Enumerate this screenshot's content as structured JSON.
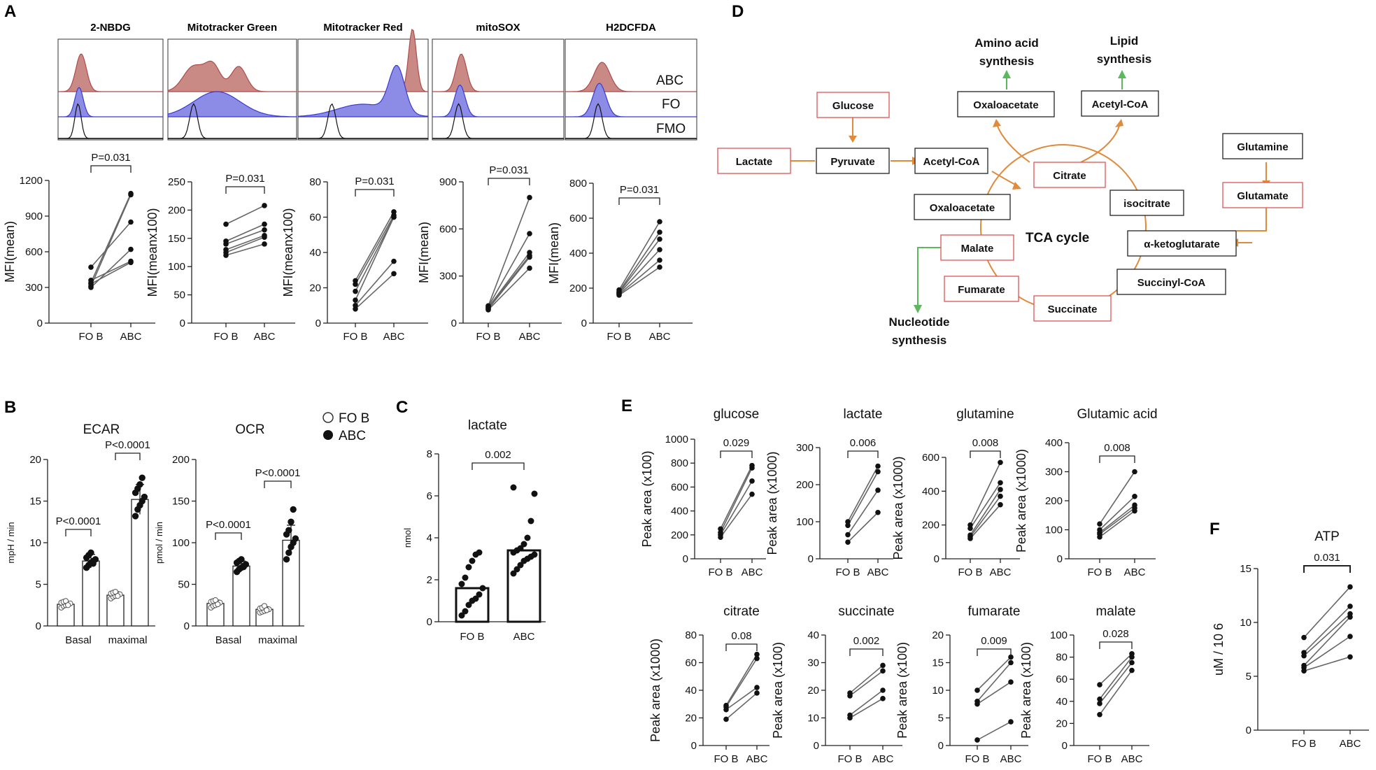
{
  "panel_labels": [
    "A",
    "B",
    "C",
    "D",
    "E",
    "F"
  ],
  "legend_b": {
    "fo": "FO B",
    "abc": "ABC"
  },
  "histograms": {
    "titles": [
      "2-NBDG",
      "Mitotracker Green",
      "Mitotracker Red",
      "mitoSOX",
      "H2DCFDA"
    ],
    "row_labels": [
      "ABC",
      "FO",
      "FMO"
    ],
    "colors": {
      "abc": "#b04a4a",
      "abc_fill": "#c98a86",
      "fo": "#3a3ad0",
      "fo_fill": "#8c8ce6",
      "fmo": "#111111",
      "abc_line": "#e08a8a",
      "fo_line": "#8888e8"
    }
  },
  "pathway": {
    "nodes": [
      "Glucose",
      "Lactate",
      "Pyruvate",
      "Acetyl-CoA",
      "Citrate",
      "Oxaloacetate",
      "isocitrate",
      "Malate",
      "α-ketoglutarate",
      "Fumarate",
      "Succinyl-CoA",
      "Succinate",
      "Glutamine",
      "Glutamate",
      "Oxaloacetate",
      "Acetyl-CoA"
    ],
    "labels": {
      "amino": "Amino acid synthesis",
      "amino_l1": "Amino acid",
      "amino_l2": "synthesis",
      "lipid_l1": "Lipid",
      "lipid_l2": "synthesis",
      "nucl_l1": "Nucleotide",
      "nucl_l2": "synthesis",
      "tca": "TCA cycle"
    },
    "colors": {
      "red": "#e05555",
      "black": "#222222",
      "arrow": "#e08a3c",
      "green": "#5cb85c"
    }
  },
  "chart_data": [
    {
      "id": "A1",
      "type": "scatter",
      "title": "",
      "ylabel": "MFI(mean)",
      "categories": [
        "FO B",
        "ABC"
      ],
      "ylim": [
        0,
        1200
      ],
      "yticks": [
        0,
        300,
        600,
        900,
        1200
      ],
      "pvalue": "P=0.031",
      "pairs": [
        [
          340,
          1090
        ],
        [
          310,
          1080
        ],
        [
          470,
          850
        ],
        [
          300,
          620
        ],
        [
          360,
          520
        ],
        [
          330,
          510
        ]
      ]
    },
    {
      "id": "A2",
      "type": "scatter",
      "title": "",
      "ylabel": "MFI(meanx100)",
      "categories": [
        "FO B",
        "ABC"
      ],
      "ylim": [
        0,
        250
      ],
      "yticks": [
        0,
        50,
        100,
        150,
        200,
        250
      ],
      "pvalue": "P=0.031",
      "pairs": [
        [
          175,
          208
        ],
        [
          145,
          175
        ],
        [
          140,
          165
        ],
        [
          130,
          155
        ],
        [
          125,
          152
        ],
        [
          120,
          140
        ]
      ]
    },
    {
      "id": "A3",
      "type": "scatter",
      "title": "",
      "ylabel": "MFI(meanx100)",
      "categories": [
        "FO B",
        "ABC"
      ],
      "ylim": [
        0,
        80
      ],
      "yticks": [
        0,
        20,
        40,
        60,
        80
      ],
      "pvalue": "P=0.031",
      "pairs": [
        [
          24,
          63
        ],
        [
          22,
          61
        ],
        [
          18,
          60
        ],
        [
          13,
          60
        ],
        [
          10,
          35
        ],
        [
          8,
          28
        ]
      ]
    },
    {
      "id": "A4",
      "type": "scatter",
      "title": "",
      "ylabel": "MFI(mean)",
      "categories": [
        "FO B",
        "ABC"
      ],
      "ylim": [
        0,
        900
      ],
      "yticks": [
        0,
        300,
        600,
        900
      ],
      "pvalue": "P=0.031",
      "pairs": [
        [
          110,
          800
        ],
        [
          105,
          570
        ],
        [
          100,
          450
        ],
        [
          95,
          430
        ],
        [
          90,
          420
        ],
        [
          85,
          350
        ]
      ]
    },
    {
      "id": "A5",
      "type": "scatter",
      "title": "",
      "ylabel": "MFI(mean)",
      "categories": [
        "FO B",
        "ABC"
      ],
      "ylim": [
        0,
        800
      ],
      "yticks": [
        0,
        200,
        400,
        600,
        800
      ],
      "pvalue": "P=0.031",
      "pairs": [
        [
          190,
          580
        ],
        [
          180,
          520
        ],
        [
          175,
          480
        ],
        [
          170,
          420
        ],
        [
          165,
          360
        ],
        [
          160,
          320
        ]
      ]
    },
    {
      "id": "B1",
      "type": "bar",
      "title": "ECAR",
      "ylabel": "mpH / min",
      "categories": [
        "Basal",
        "maximal"
      ],
      "ylim": [
        0,
        20
      ],
      "yticks": [
        0,
        5,
        10,
        15,
        20
      ],
      "series": [
        {
          "name": "FO B",
          "group": "Basal",
          "mean": 2.6,
          "sd": 0.3,
          "points": [
            2.2,
            2.4,
            2.5,
            2.6,
            2.7,
            2.8,
            2.9,
            3.0,
            2.5
          ]
        },
        {
          "name": "ABC",
          "group": "Basal",
          "mean": 7.8,
          "sd": 0.8,
          "points": [
            7.0,
            7.3,
            7.6,
            7.8,
            8.0,
            8.2,
            8.5,
            8.8,
            7.5
          ]
        },
        {
          "name": "FO B",
          "group": "maximal",
          "mean": 3.7,
          "sd": 0.4,
          "points": [
            3.3,
            3.5,
            3.6,
            3.7,
            3.8,
            3.9,
            4.0,
            4.1,
            3.6
          ]
        },
        {
          "name": "ABC",
          "group": "maximal",
          "mean": 15.2,
          "sd": 1.8,
          "points": [
            13.2,
            14.0,
            14.5,
            15.0,
            15.5,
            16.0,
            16.5,
            17.0,
            17.8
          ]
        }
      ],
      "pvalues": [
        {
          "group": "Basal",
          "text": "P<0.0001"
        },
        {
          "group": "maximal",
          "text": "P<0.0001"
        }
      ]
    },
    {
      "id": "B2",
      "type": "bar",
      "title": "OCR",
      "ylabel": "pmol / min",
      "categories": [
        "Basal",
        "maximal"
      ],
      "ylim": [
        0,
        200
      ],
      "yticks": [
        0,
        50,
        100,
        150,
        200
      ],
      "series": [
        {
          "name": "FO B",
          "group": "Basal",
          "mean": 27,
          "sd": 4,
          "points": [
            22,
            24,
            25,
            27,
            28,
            29,
            30,
            31,
            26
          ]
        },
        {
          "name": "ABC",
          "group": "Basal",
          "mean": 72,
          "sd": 6,
          "points": [
            65,
            68,
            70,
            72,
            74,
            76,
            78,
            80,
            71
          ]
        },
        {
          "name": "FO B",
          "group": "maximal",
          "mean": 20,
          "sd": 3,
          "points": [
            16,
            17,
            18,
            19,
            20,
            21,
            22,
            24,
            19
          ]
        },
        {
          "name": "ABC",
          "group": "maximal",
          "mean": 103,
          "sd": 18,
          "points": [
            80,
            88,
            95,
            100,
            105,
            110,
            115,
            125,
            140
          ]
        }
      ],
      "pvalues": [
        {
          "group": "Basal",
          "text": "P<0.0001"
        },
        {
          "group": "maximal",
          "text": "P<0.0001"
        }
      ]
    },
    {
      "id": "C",
      "type": "bar",
      "title": "lactate",
      "ylabel": "nmol",
      "categories": [
        "FO B",
        "ABC"
      ],
      "ylim": [
        0,
        8
      ],
      "yticks": [
        0,
        2,
        4,
        6,
        8
      ],
      "pvalue": "0.002",
      "values": [
        1.6,
        3.4
      ],
      "points": [
        [
          0.3,
          0.5,
          0.8,
          1.0,
          1.1,
          1.3,
          1.6,
          1.8,
          2.1,
          2.6,
          2.9,
          3.2,
          3.3
        ],
        [
          2.3,
          2.5,
          2.7,
          2.9,
          3.0,
          3.1,
          3.2,
          3.3,
          3.4,
          3.5,
          3.7,
          4.0,
          4.8,
          6.1,
          6.4
        ]
      ]
    },
    {
      "id": "E1",
      "type": "scatter",
      "title": "glucose",
      "ylabel": "Peak area (x100)",
      "categories": [
        "FO B",
        "ABC"
      ],
      "ylim": [
        0,
        1000
      ],
      "yticks": [
        0,
        200,
        400,
        600,
        800,
        1000
      ],
      "pvalue": "0.029",
      "pairs": [
        [
          250,
          780
        ],
        [
          220,
          760
        ],
        [
          200,
          650
        ],
        [
          180,
          540
        ]
      ]
    },
    {
      "id": "E2",
      "type": "scatter",
      "title": "lactate",
      "ylabel": "Peak area (x1000)",
      "categories": [
        "FO B",
        "ABC"
      ],
      "ylim": [
        0,
        300
      ],
      "yticks": [
        0,
        100,
        200,
        300
      ],
      "pvalue": "0.006",
      "pairs": [
        [
          100,
          250
        ],
        [
          90,
          235
        ],
        [
          65,
          185
        ],
        [
          45,
          125
        ]
      ]
    },
    {
      "id": "E3",
      "type": "scatter",
      "title": "glutamine",
      "ylabel": "Peak area (x1000)",
      "categories": [
        "FO B",
        "ABC"
      ],
      "ylim": [
        0,
        600
      ],
      "yticks": [
        0,
        200,
        400,
        600
      ],
      "pvalue": "0.008",
      "pairs": [
        [
          200,
          570
        ],
        [
          180,
          450
        ],
        [
          140,
          410
        ],
        [
          130,
          370
        ],
        [
          120,
          320
        ]
      ]
    },
    {
      "id": "E4",
      "type": "scatter",
      "title": "Glutamic acid",
      "ylabel": "Peak area (x1000)",
      "categories": [
        "FO B",
        "ABC"
      ],
      "ylim": [
        0,
        400
      ],
      "yticks": [
        0,
        100,
        200,
        300,
        400
      ],
      "pvalue": "0.008",
      "pairs": [
        [
          120,
          300
        ],
        [
          100,
          215
        ],
        [
          90,
          185
        ],
        [
          85,
          175
        ],
        [
          75,
          165
        ]
      ]
    },
    {
      "id": "E5",
      "type": "scatter",
      "title": "citrate",
      "ylabel": "Peak area (x1000)",
      "categories": [
        "FO B",
        "ABC"
      ],
      "ylim": [
        0,
        80
      ],
      "yticks": [
        0,
        20,
        40,
        60,
        80
      ],
      "pvalue": "0.08",
      "pairs": [
        [
          29,
          66
        ],
        [
          28,
          63
        ],
        [
          26,
          42
        ],
        [
          19,
          38
        ]
      ]
    },
    {
      "id": "E6",
      "type": "scatter",
      "title": "succinate",
      "ylabel": "Peak area (x100)",
      "categories": [
        "FO B",
        "ABC"
      ],
      "ylim": [
        0,
        40
      ],
      "yticks": [
        0,
        10,
        20,
        30,
        40
      ],
      "pvalue": "0.002",
      "pairs": [
        [
          19,
          29
        ],
        [
          18,
          27
        ],
        [
          11,
          20
        ],
        [
          10,
          17
        ]
      ]
    },
    {
      "id": "E7",
      "type": "scatter",
      "title": "fumarate",
      "ylabel": "Peak area (x100)",
      "categories": [
        "FO B",
        "ABC"
      ],
      "ylim": [
        0,
        20
      ],
      "yticks": [
        0,
        5,
        10,
        15,
        20
      ],
      "pvalue": "0.009",
      "pairs": [
        [
          10,
          16
        ],
        [
          8,
          15
        ],
        [
          7.5,
          11.5
        ],
        [
          1,
          4.3
        ]
      ]
    },
    {
      "id": "E8",
      "type": "scatter",
      "title": "malate",
      "ylabel": "Peak area (x100)",
      "categories": [
        "FO B",
        "ABC"
      ],
      "ylim": [
        0,
        100
      ],
      "yticks": [
        0,
        20,
        40,
        60,
        80,
        100
      ],
      "pvalue": "0.028",
      "pairs": [
        [
          55,
          83
        ],
        [
          42,
          80
        ],
        [
          38,
          75
        ],
        [
          28,
          68
        ]
      ]
    },
    {
      "id": "F",
      "type": "scatter",
      "title": "ATP",
      "ylabel": "uM / 10 6",
      "categories": [
        "FO B",
        "ABC"
      ],
      "ylim": [
        0,
        15
      ],
      "yticks": [
        0,
        5,
        10,
        15
      ],
      "pvalue": "0.031",
      "pairs": [
        [
          8.6,
          13.3
        ],
        [
          7.2,
          11.5
        ],
        [
          6.9,
          10.8
        ],
        [
          6.0,
          10.5
        ],
        [
          5.8,
          8.7
        ],
        [
          5.5,
          6.8
        ]
      ]
    }
  ]
}
